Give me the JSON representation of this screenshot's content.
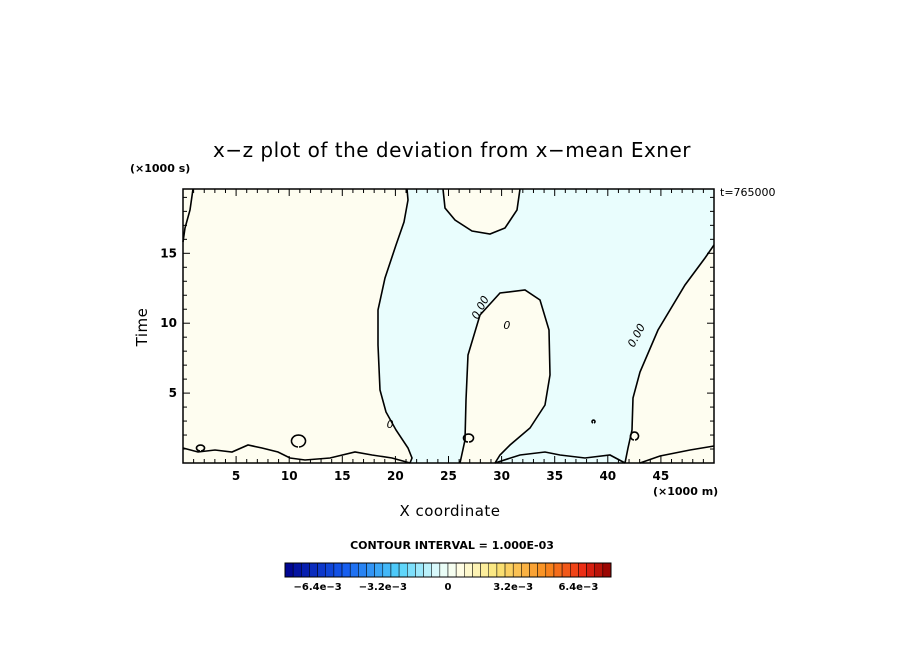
{
  "chart_data": {
    "type": "contour",
    "title": "x−z plot of the deviation from x−mean Exner",
    "xlabel": "X coordinate",
    "ylabel": "Time",
    "x_unit": "(×1000 m)",
    "y_unit": "(×1000 s)",
    "time_label": "t=765000",
    "xlim": [
      0,
      50
    ],
    "ylim": [
      0,
      19.6
    ],
    "x_ticks": [
      5,
      10,
      15,
      20,
      25,
      30,
      35,
      40,
      45
    ],
    "y_ticks": [
      5,
      10,
      15
    ],
    "contour_labels": [
      {
        "text": "0.00",
        "x": 28.3,
        "y": 11.0
      },
      {
        "text": "0",
        "x": 30.5,
        "y": 9.6
      },
      {
        "text": "0.00",
        "x": 43.0,
        "y": 9.0
      },
      {
        "text": "0",
        "x": 19.5,
        "y": 2.5
      }
    ],
    "contour_interval": "CONTOUR INTERVAL = 1.000E-03",
    "colorbar": {
      "min": -0.008,
      "max": 0.008,
      "step": 0.0004,
      "tick_labels": [
        {
          "text": "−6.4e−3",
          "value": -0.0064
        },
        {
          "text": "−3.2e−3",
          "value": -0.0032
        },
        {
          "text": "0",
          "value": 0
        },
        {
          "text": "3.2e−3",
          "value": 0.0032
        },
        {
          "text": "6.4e−3",
          "value": 0.0064
        }
      ]
    },
    "colors": {
      "positive_fill": "#fefdf0",
      "negative_fill": "#e9fdfd",
      "contour_line": "#000000"
    }
  }
}
